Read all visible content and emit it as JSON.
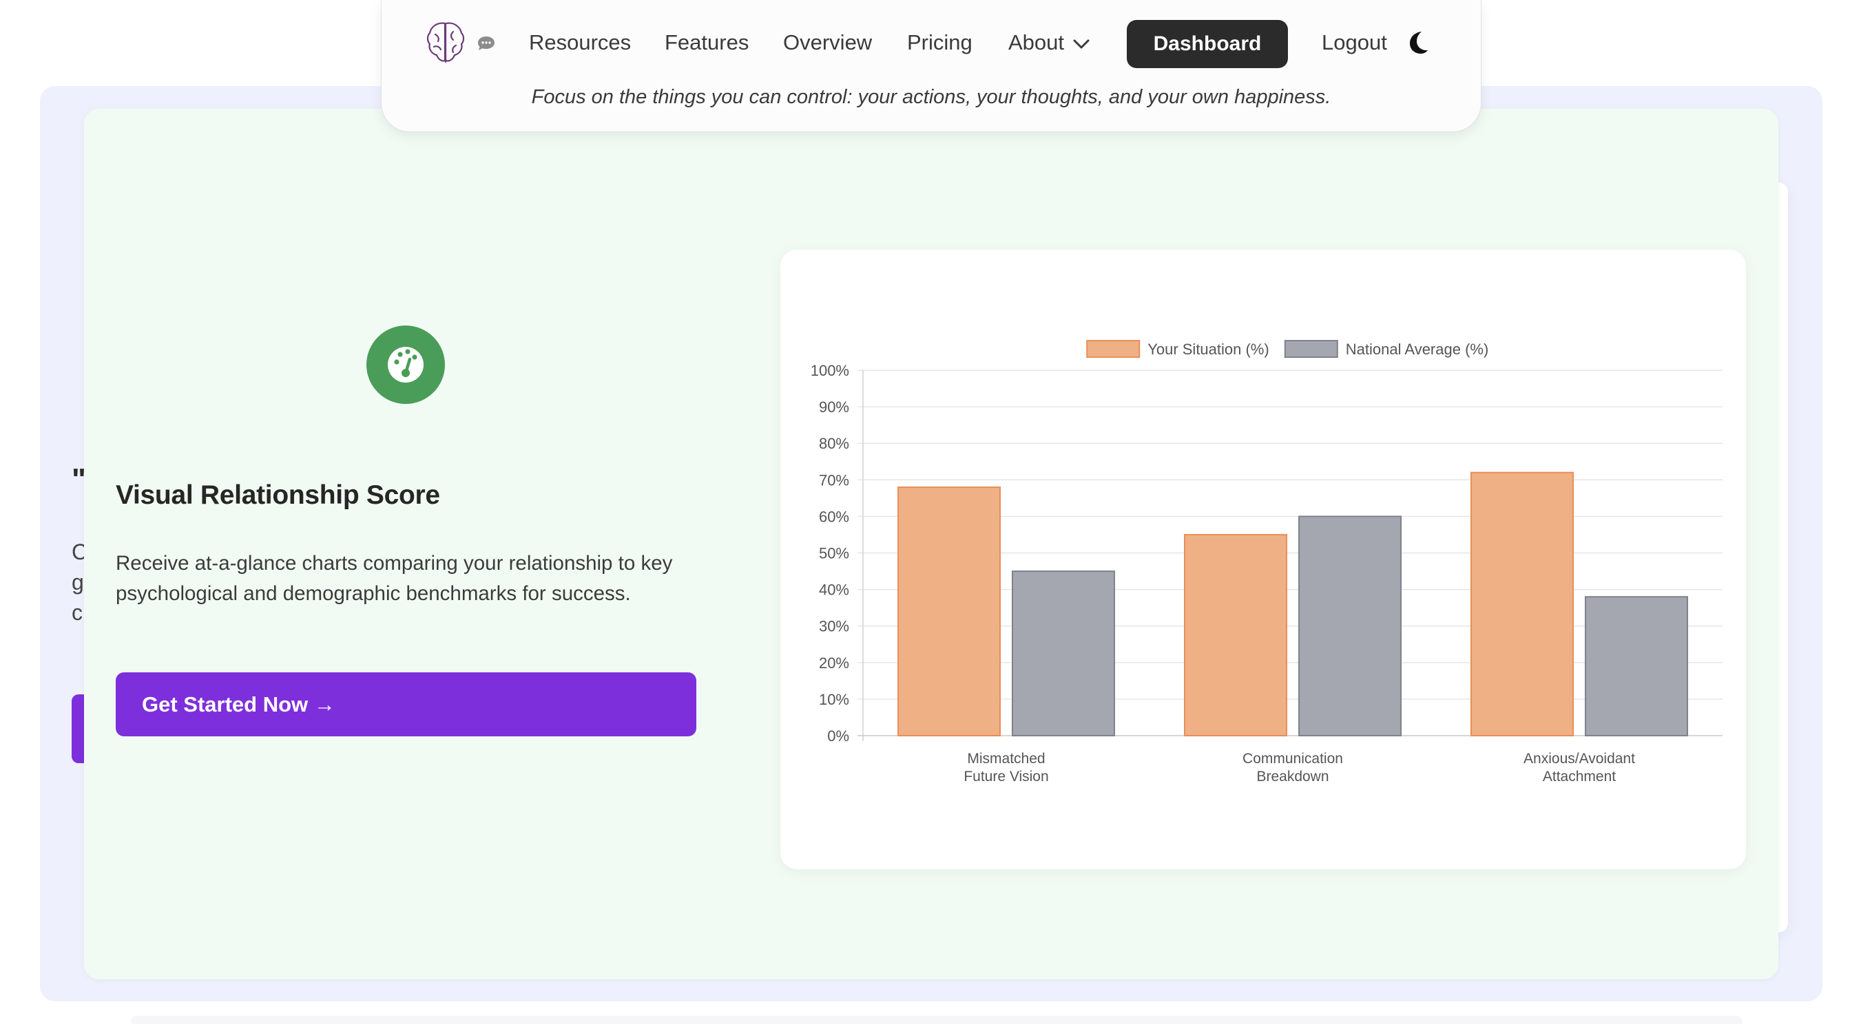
{
  "navbar": {
    "links": [
      "Resources",
      "Features",
      "Overview",
      "Pricing",
      "About"
    ],
    "dashboard_label": "Dashboard",
    "logout_label": "Logout",
    "quote": "Focus on the things you can control: your actions, your thoughts, and your own happiness."
  },
  "feature": {
    "icon": "gauge-icon",
    "title": "Visual Relationship Score",
    "description": "Receive at-a-glance charts comparing your relationship to key psychological and demographic benchmarks for success.",
    "cta_label": "Get Started Now →"
  },
  "background_peek": {
    "quote_mark": "\"",
    "text_lines": [
      "C",
      "g",
      "c"
    ]
  },
  "colors": {
    "accent_purple": "#7e2fdc",
    "feature_green": "#4a9d58",
    "card_green": "#f1fbf3",
    "panel_lavender": "#eef0fd",
    "series_situation": "#f0b085",
    "series_situation_border": "#e88e58",
    "series_national": "#a5a7b0",
    "series_national_border": "#7f818c"
  },
  "chart_data": {
    "type": "bar",
    "categories": [
      [
        "Mismatched",
        "Future Vision"
      ],
      [
        "Communication",
        "Breakdown"
      ],
      [
        "Anxious/Avoidant",
        "Attachment"
      ]
    ],
    "series": [
      {
        "name": "Your Situation (%)",
        "values": [
          68,
          55,
          72
        ]
      },
      {
        "name": "National Average (%)",
        "values": [
          45,
          60,
          38
        ]
      }
    ],
    "ylim": [
      0,
      100
    ],
    "yticks": [
      "0%",
      "10%",
      "20%",
      "30%",
      "40%",
      "50%",
      "60%",
      "70%",
      "80%",
      "90%",
      "100%"
    ],
    "grid": true,
    "legend": "top-center"
  }
}
